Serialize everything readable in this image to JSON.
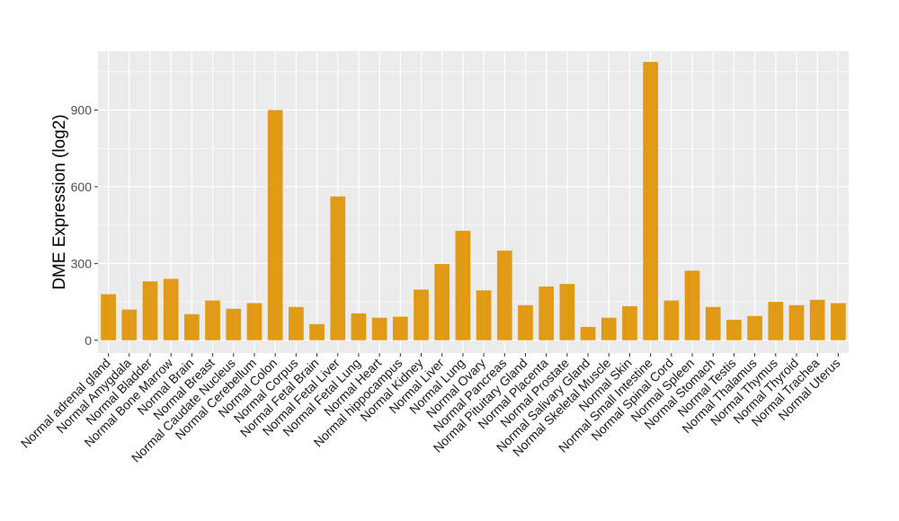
{
  "chart_data": {
    "type": "bar",
    "title": "",
    "xlabel": "",
    "ylabel": "DME Expression (log2)",
    "ylim": [
      -50,
      1130
    ],
    "yticks": [
      0,
      300,
      600,
      900
    ],
    "grid": true,
    "bar_color": "#E09A16",
    "panel_background": "#EBEBEB",
    "gridline_color": "#FFFFFF",
    "categories": [
      "Normal adrenal gland",
      "Normal Amygdala",
      "Normal Bladder",
      "Normal Bone Marrow",
      "Normal Brain",
      "Normal Breast",
      "Normal Caudate Nucleus",
      "Normal Cerebellum",
      "Normal Colon",
      "Normal Corpus",
      "Normal Fetal Brain",
      "Normal Fetal Liver",
      "Normal Fetal Lung",
      "Normal Heart",
      "Normal hippocampus",
      "Normal Kidney",
      "Normal Liver",
      "Normal Lung",
      "Normal Ovary",
      "Normal Pancreas",
      "Normal Pituitary Gland",
      "Normal Placenta",
      "Normal Prostate",
      "Normal Salivary Gland",
      "Normal Skeletal Muscle",
      "Normal Skin",
      "Normal Small Intestine",
      "Normal Spinal Cord",
      "Normal Spleen",
      "Normal Stomach",
      "Normal Testis",
      "Normal Thalamus",
      "Normal Thymus",
      "Normal Thyroid",
      "Normal Trachea",
      "Normal Uterus"
    ],
    "values": [
      180,
      120,
      230,
      240,
      102,
      155,
      123,
      145,
      900,
      130,
      63,
      562,
      105,
      88,
      92,
      198,
      298,
      428,
      195,
      350,
      137,
      210,
      220,
      52,
      88,
      133,
      1088,
      155,
      272,
      130,
      80,
      95,
      150,
      137,
      158,
      145
    ]
  }
}
